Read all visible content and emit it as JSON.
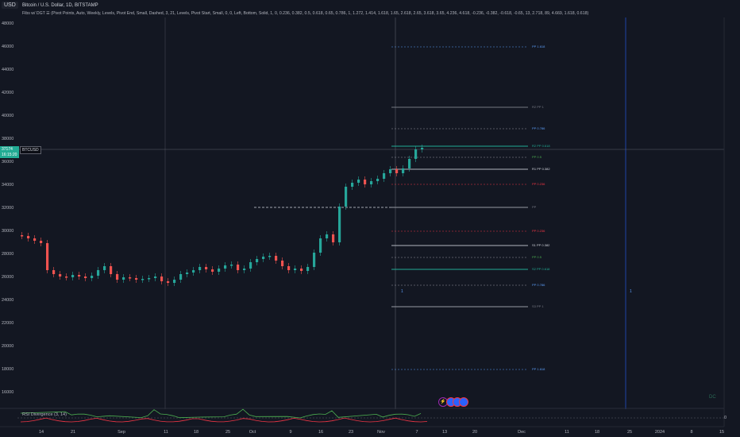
{
  "header": {
    "currency": "USD",
    "title": "Bitcoin / U.S. Dollar, 1D, BITSTAMP",
    "indicator": "Fibs w/ DGT ☰ (Pivot Points, Auto, Weekly, Levels, Pivot End, Small, Dashed, 3, 21, Levels, Pivot Start, Small, 0, 0, Left, Bottom, Solid, 1, 0, 0.236, 0.382, 0.5, 0.618, 0.65, 0.786, 1, 1.272, 1.414, 1.618, 1.65, 2.618, 2.65, 3.618, 3.65, 4.236, 4.618, -0.236, -0.382, -0.618, -0.65, 13, 2.718, 89, 4.669, 1.618, 0.618)"
  },
  "price_axis": [
    "48000",
    "46000",
    "44000",
    "42000",
    "40000",
    "38000",
    "36000",
    "34000",
    "32000",
    "30000",
    "28000",
    "26000",
    "24000",
    "22000",
    "20000",
    "18000",
    "16000"
  ],
  "current_price": {
    "value": "37174",
    "countdown": "16:15:20",
    "symbol": "BTCUSD"
  },
  "time_axis": [
    "14",
    "21",
    "Sep",
    "11",
    "18",
    "25",
    "Oct",
    "9",
    "16",
    "23",
    "Nov",
    "7",
    "13",
    "20",
    "Dec",
    "11",
    "18",
    "25",
    "2024",
    "8",
    "15"
  ],
  "fib_levels": [
    {
      "label": "PP 1.618",
      "color": "#5b9cf6"
    },
    {
      "label": "R2 PP 1",
      "color": "#787b86"
    },
    {
      "label": "PP 0.786",
      "color": "#5b9cf6"
    },
    {
      "label": "R2 PP 0.618",
      "color": "#22ab94"
    },
    {
      "label": "PP 0.5",
      "color": "#4caf50"
    },
    {
      "label": "R1 PP 0.382",
      "color": "#d1d4dc"
    },
    {
      "label": "PP 0.236",
      "color": "#f23645"
    },
    {
      "label": "PP",
      "color": "#787b86"
    },
    {
      "label": "PP 0.236",
      "color": "#f23645"
    },
    {
      "label": "S1 PP 0.382",
      "color": "#d1d4dc"
    },
    {
      "label": "PP 0.5",
      "color": "#4caf50"
    },
    {
      "label": "S2 PP 0.618",
      "color": "#22ab94"
    },
    {
      "label": "PP 0.786",
      "color": "#5b9cf6"
    },
    {
      "label": "S3 PP 1",
      "color": "#787b86"
    },
    {
      "label": "PP 1.618",
      "color": "#5b9cf6"
    }
  ],
  "rsi": {
    "label": "RSI Divergence (3, 14)",
    "zero": "0"
  },
  "markers": {
    "week_left": "1",
    "week_right": "1"
  },
  "watermark": "DC",
  "colors": {
    "up": "#26a69a",
    "down": "#ef5350",
    "bg": "#131722",
    "grid": "#1e222d"
  }
}
